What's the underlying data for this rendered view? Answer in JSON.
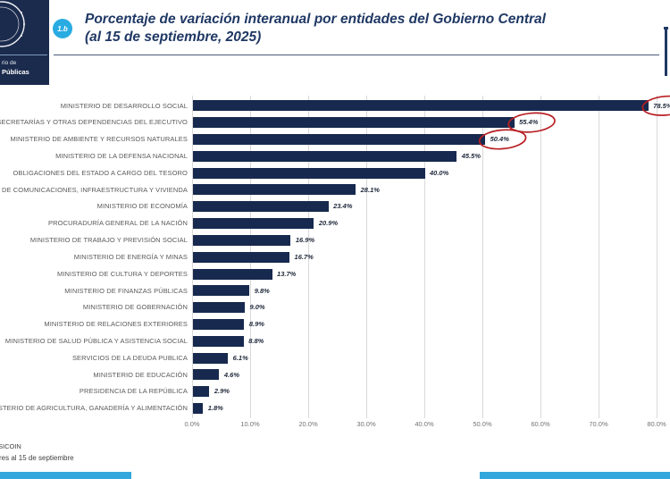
{
  "header": {
    "badge": "1.b",
    "badge_color": "#29abe2",
    "title_line1": "Porcentaje de variación interanual por entidades del Gobierno Central",
    "title_line2": "(al 15 de septiembre, 2025)",
    "title_color": "#1f3864"
  },
  "logo": {
    "text_line1": "rio de",
    "text_line2": "Públicas",
    "bg_color": "#1b2b4d"
  },
  "chart_data": {
    "type": "bar",
    "orientation": "horizontal",
    "title": "Porcentaje de variación interanual por entidades del Gobierno Central (al 15 de septiembre, 2025)",
    "categories": [
      "MINISTERIO DE DESARROLLO SOCIAL",
      "SECRETARÍAS Y OTRAS DEPENDENCIAS DEL EJECUTIVO",
      "MINISTERIO DE AMBIENTE Y RECURSOS NATURALES",
      "MINISTERIO DE LA DEFENSA NACIONAL",
      "OBLIGACIONES DEL ESTADO A CARGO DEL TESORO",
      "MINISTERIO DE  COMUNICACIONES, INFRAESTRUCTURA Y VIVIENDA",
      "MINISTERIO DE ECONOMÍA",
      "PROCURADURÍA GENERAL DE LA NACIÓN",
      "MINISTERIO DE TRABAJO Y PREVISIÓN SOCIAL",
      "MINISTERIO DE ENERGÍA Y MINAS",
      "MINISTERIO DE CULTURA Y DEPORTES",
      "MINISTERIO DE FINANZAS PÚBLICAS",
      "MINISTERIO DE GOBERNACIÓN",
      "MINISTERIO DE RELACIONES EXTERIORES",
      "MINISTERIO DE SALUD PÚBLICA Y ASISTENCIA SOCIAL",
      "SERVICIOS DE LA DEUDA PUBLICA",
      "MINISTERIO DE EDUCACIÓN",
      "PRESIDENCIA DE LA REPÚBLICA",
      "MINISTERIO DE AGRICULTURA, GANADERÍA Y ALIMENTACIÓN"
    ],
    "values": [
      78.5,
      55.4,
      50.4,
      45.5,
      40.0,
      28.1,
      23.4,
      20.9,
      16.9,
      16.7,
      13.7,
      9.8,
      9.0,
      8.9,
      8.8,
      6.1,
      4.6,
      2.9,
      1.8
    ],
    "x_ticks": [
      "0.0%",
      "10.0%",
      "20.0%",
      "30.0%",
      "40.0%",
      "50.0%",
      "60.0%",
      "70.0%",
      "80.0%"
    ],
    "xlim": [
      0,
      80
    ],
    "grid": true,
    "legend": false,
    "bar_color": "#17294e",
    "grid_color": "#d9d9d9",
    "category_label_color": "#595959",
    "value_label_color": "#202a3c",
    "highlighted_indices": [
      0,
      1,
      2
    ],
    "highlight_color": "#b81f24"
  },
  "footer": {
    "source_line1": "SICOIN",
    "source_line2": "res al 15 de septiembre",
    "accent_color": "#32a7db"
  }
}
